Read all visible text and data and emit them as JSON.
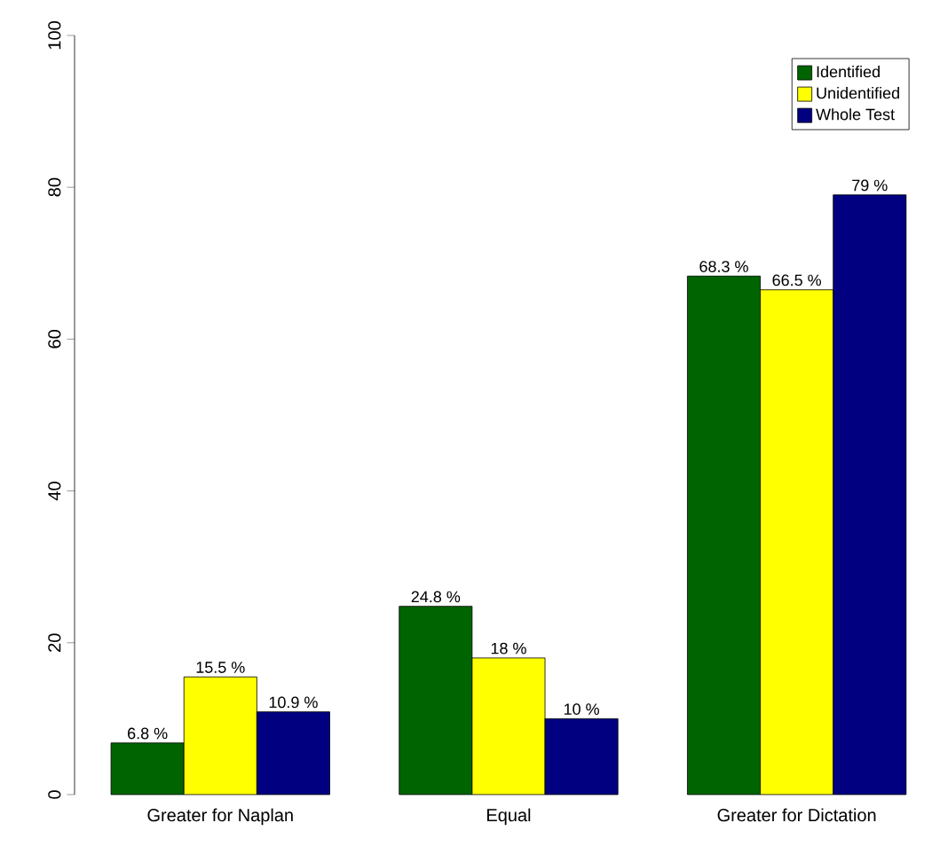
{
  "chart_data": {
    "type": "bar",
    "categories": [
      "Greater for Naplan",
      "Equal",
      "Greater for Dictation"
    ],
    "series": [
      {
        "name": "Identified",
        "color": "#006400",
        "values": [
          6.8,
          24.8,
          68.3
        ],
        "value_labels": [
          "6.8 %",
          "24.8 %",
          "68.3 %"
        ]
      },
      {
        "name": "Unidentified",
        "color": "#ffff00",
        "values": [
          15.5,
          18,
          66.5
        ],
        "value_labels": [
          "15.5 %",
          "18 %",
          "66.5 %"
        ]
      },
      {
        "name": "Whole Test",
        "color": "#000080",
        "values": [
          10.9,
          10,
          79
        ],
        "value_labels": [
          "10.9 %",
          "10 %",
          "79 %"
        ]
      }
    ],
    "ylim": [
      0,
      100
    ],
    "yticks": [
      0,
      20,
      40,
      60,
      80,
      100
    ],
    "legend": "top right",
    "grid": false
  }
}
